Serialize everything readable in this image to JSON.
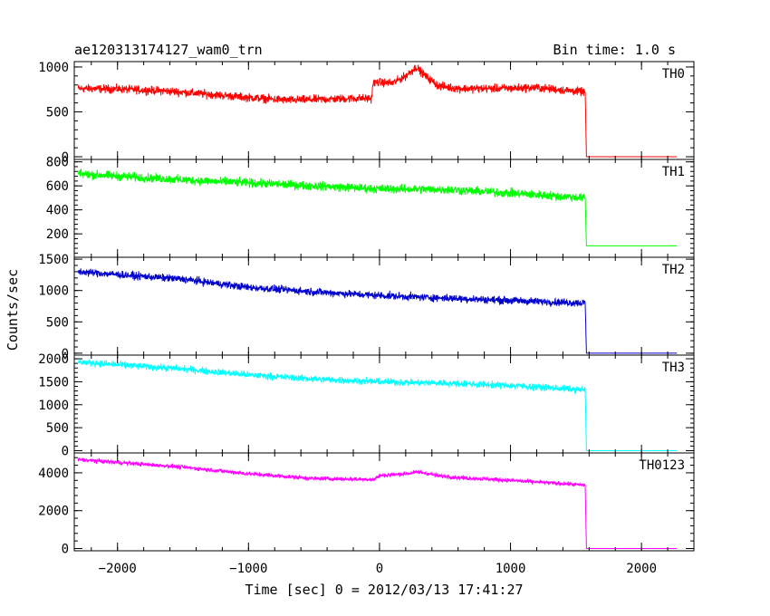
{
  "header": {
    "title": "ae120313174127_wam0_trn",
    "bin_time": "Bin time: 1.0 s"
  },
  "chart_data": {
    "type": "line",
    "xlabel": "Time [sec] 0 = 2012/03/13 17:41:27",
    "ylabel": "Counts/sec",
    "xlim": [
      -2330,
      2400
    ],
    "xticks": [
      "−2000",
      "−1000",
      "0",
      "1000",
      "2000"
    ],
    "x_tick_values": [
      -2000,
      -1000,
      0,
      1000,
      2000
    ],
    "panels": [
      {
        "name": "TH0",
        "color": "#ff0000",
        "ylim": [
          -30,
          1060
        ],
        "ytick_values": [
          0,
          500,
          1000
        ],
        "yticks": [
          "0",
          "500",
          "1000"
        ],
        "x": [
          -2300,
          -2000,
          -1600,
          -1000,
          -700,
          -200,
          -60,
          -50,
          0,
          100,
          200,
          280,
          350,
          450,
          600,
          900,
          1200,
          1500,
          1570,
          1580,
          2270
        ],
        "values": [
          760,
          755,
          730,
          660,
          630,
          650,
          650,
          820,
          830,
          820,
          900,
          1000,
          900,
          790,
          760,
          760,
          770,
          730,
          720,
          0,
          0
        ],
        "noise": 35
      },
      {
        "name": "TH1",
        "color": "#00ff00",
        "ylim": [
          5,
          820
        ],
        "ytick_values": [
          200,
          400,
          600,
          800
        ],
        "yticks": [
          "200",
          "400",
          "600",
          "800"
        ],
        "x": [
          -2300,
          -1500,
          -500,
          0,
          500,
          1000,
          1570,
          1580,
          2270
        ],
        "values": [
          700,
          650,
          600,
          575,
          570,
          540,
          500,
          100,
          100
        ],
        "noise": 28
      },
      {
        "name": "TH2",
        "color": "#0000cc",
        "ylim": [
          -30,
          1530
        ],
        "ytick_values": [
          0,
          500,
          1000,
          1500
        ],
        "yticks": [
          "0",
          "500",
          "1000",
          "1500"
        ],
        "x": [
          -2300,
          -1500,
          -1000,
          -500,
          0,
          500,
          1000,
          1570,
          1580,
          2270
        ],
        "values": [
          1300,
          1180,
          1050,
          980,
          920,
          880,
          840,
          800,
          0,
          0
        ],
        "noise": 45
      },
      {
        "name": "TH3",
        "color": "#00ffff",
        "ylim": [
          -50,
          2080
        ],
        "ytick_values": [
          0,
          500,
          1000,
          1500,
          2000
        ],
        "yticks": [
          "0",
          "500",
          "1000",
          "1500",
          "2000"
        ],
        "x": [
          -2300,
          -1500,
          -1000,
          -500,
          0,
          500,
          1000,
          1570,
          1580,
          2270
        ],
        "values": [
          1930,
          1780,
          1650,
          1560,
          1500,
          1470,
          1420,
          1320,
          0,
          0
        ],
        "noise": 55
      },
      {
        "name": "TH0123",
        "color": "#ff00ff",
        "ylim": [
          -120,
          5050
        ],
        "ytick_values": [
          0,
          2000,
          4000
        ],
        "yticks": [
          "0",
          "2000",
          "4000"
        ],
        "x": [
          -2300,
          -1500,
          -1000,
          -500,
          -40,
          0,
          200,
          300,
          450,
          600,
          1000,
          1570,
          1580,
          2270
        ],
        "values": [
          4700,
          4300,
          3950,
          3700,
          3650,
          3850,
          3950,
          4050,
          3850,
          3750,
          3600,
          3350,
          0,
          0
        ],
        "noise": 80
      }
    ]
  }
}
